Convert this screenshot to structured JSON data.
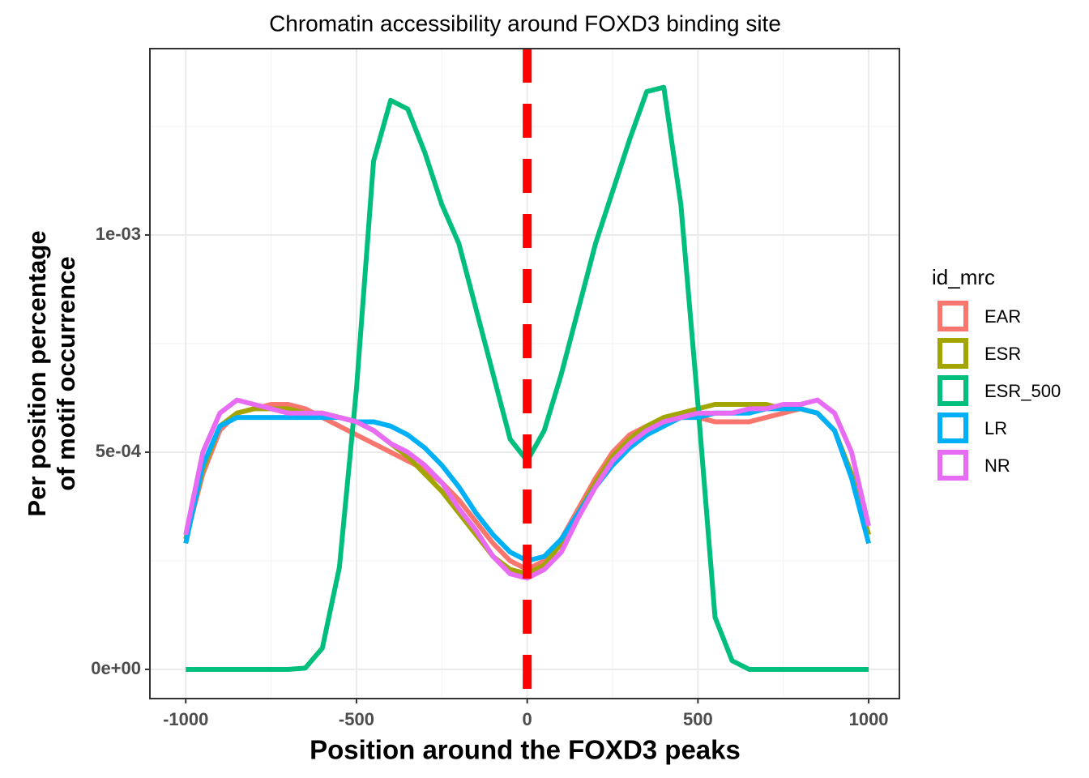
{
  "chart_data": {
    "type": "line",
    "title": "Chromatin accessibility around FOXD3 binding site",
    "xlabel": "Position around the FOXD3 peaks",
    "ylabel": [
      "Per position percentage",
      "of motif occurrence"
    ],
    "legend_title": "id_mrc",
    "legend_position": "right",
    "grid": true,
    "xlim": [
      -1105,
      1090
    ],
    "ylim": [
      -6.72e-05,
      0.001429
    ],
    "xticks": [
      -1000,
      -500,
      0,
      500,
      1000
    ],
    "xminorticks": [
      -750,
      -250,
      250,
      750
    ],
    "yticks": [
      {
        "value": 0,
        "label": "0e+00"
      },
      {
        "value": 0.0005,
        "label": "5e-04"
      },
      {
        "value": 0.001,
        "label": "1e-03"
      }
    ],
    "yminorticks": [
      0.00025,
      0.00075,
      0.00125
    ],
    "vline": {
      "x": 0,
      "color": "#ff0000",
      "dashed": true
    },
    "x": [
      -1000,
      -950,
      -900,
      -850,
      -800,
      -750,
      -700,
      -650,
      -600,
      -550,
      -500,
      -450,
      -400,
      -350,
      -300,
      -250,
      -200,
      -150,
      -100,
      -50,
      0,
      50,
      100,
      150,
      200,
      250,
      300,
      350,
      400,
      450,
      500,
      550,
      600,
      650,
      700,
      750,
      800,
      850,
      900,
      950,
      1000
    ],
    "series": [
      {
        "name": "EAR",
        "color": "#F8766D",
        "values": [
          0.0003,
          0.00045,
          0.00055,
          0.00059,
          0.0006,
          0.00061,
          0.00061,
          0.0006,
          0.00058,
          0.00056,
          0.00054,
          0.00052,
          0.0005,
          0.00048,
          0.00046,
          0.00043,
          0.00039,
          0.00034,
          0.00029,
          0.00025,
          0.00023,
          0.00025,
          0.0003,
          0.00037,
          0.00044,
          0.0005,
          0.00054,
          0.00056,
          0.00057,
          0.00058,
          0.00058,
          0.00057,
          0.00057,
          0.00057,
          0.00058,
          0.00059,
          0.0006,
          0.00059,
          0.00055,
          0.00045,
          0.00031
        ]
      },
      {
        "name": "ESR",
        "color": "#A3A500",
        "values": [
          0.0003,
          0.00046,
          0.00056,
          0.00059,
          0.0006,
          0.0006,
          0.0006,
          0.00059,
          0.00059,
          0.00058,
          0.00057,
          0.00055,
          0.00052,
          0.00049,
          0.00045,
          0.00041,
          0.00036,
          0.00031,
          0.00026,
          0.00023,
          0.00022,
          0.00024,
          0.00029,
          0.00036,
          0.00043,
          0.00049,
          0.00053,
          0.00056,
          0.00058,
          0.00059,
          0.0006,
          0.00061,
          0.00061,
          0.00061,
          0.00061,
          0.0006,
          0.0006,
          0.00059,
          0.00055,
          0.00045,
          0.00031
        ]
      },
      {
        "name": "ESR_500",
        "color": "#00BF7D",
        "values": [
          0,
          0,
          0,
          0,
          0,
          0,
          0,
          3e-06,
          4.9e-05,
          0.000235,
          0.000646,
          0.00117,
          0.00131,
          0.00129,
          0.00119,
          0.00107,
          0.00098,
          0.00083,
          0.00068,
          0.00053,
          0.00048,
          0.00055,
          0.00068,
          0.00083,
          0.00098,
          0.0011,
          0.00122,
          0.00133,
          0.00134,
          0.00107,
          0.00061,
          0.00012,
          2e-05,
          0,
          0,
          0,
          0,
          0,
          0,
          0,
          0
        ]
      },
      {
        "name": "LR",
        "color": "#00B0F6",
        "values": [
          0.00029,
          0.00047,
          0.00056,
          0.00058,
          0.00058,
          0.00058,
          0.00058,
          0.00058,
          0.00058,
          0.00058,
          0.00057,
          0.00057,
          0.00056,
          0.00054,
          0.00051,
          0.00047,
          0.00042,
          0.00036,
          0.00031,
          0.00027,
          0.00025,
          0.00026,
          0.0003,
          0.00036,
          0.00042,
          0.00047,
          0.00051,
          0.00054,
          0.00056,
          0.00058,
          0.00058,
          0.00059,
          0.00059,
          0.00059,
          0.0006,
          0.0006,
          0.0006,
          0.00059,
          0.00055,
          0.00044,
          0.00029
        ]
      },
      {
        "name": "NR",
        "color": "#E76BF3",
        "values": [
          0.00031,
          0.0005,
          0.00059,
          0.00062,
          0.00061,
          0.0006,
          0.00059,
          0.00059,
          0.00059,
          0.00058,
          0.00057,
          0.00055,
          0.00052,
          0.0005,
          0.00047,
          0.00043,
          0.00037,
          0.00032,
          0.00026,
          0.00022,
          0.00021,
          0.00023,
          0.00027,
          0.00035,
          0.00042,
          0.00048,
          0.00052,
          0.00055,
          0.00057,
          0.00058,
          0.00059,
          0.00059,
          0.00059,
          0.0006,
          0.0006,
          0.00061,
          0.00061,
          0.00062,
          0.00059,
          0.0005,
          0.00033
        ]
      }
    ]
  }
}
